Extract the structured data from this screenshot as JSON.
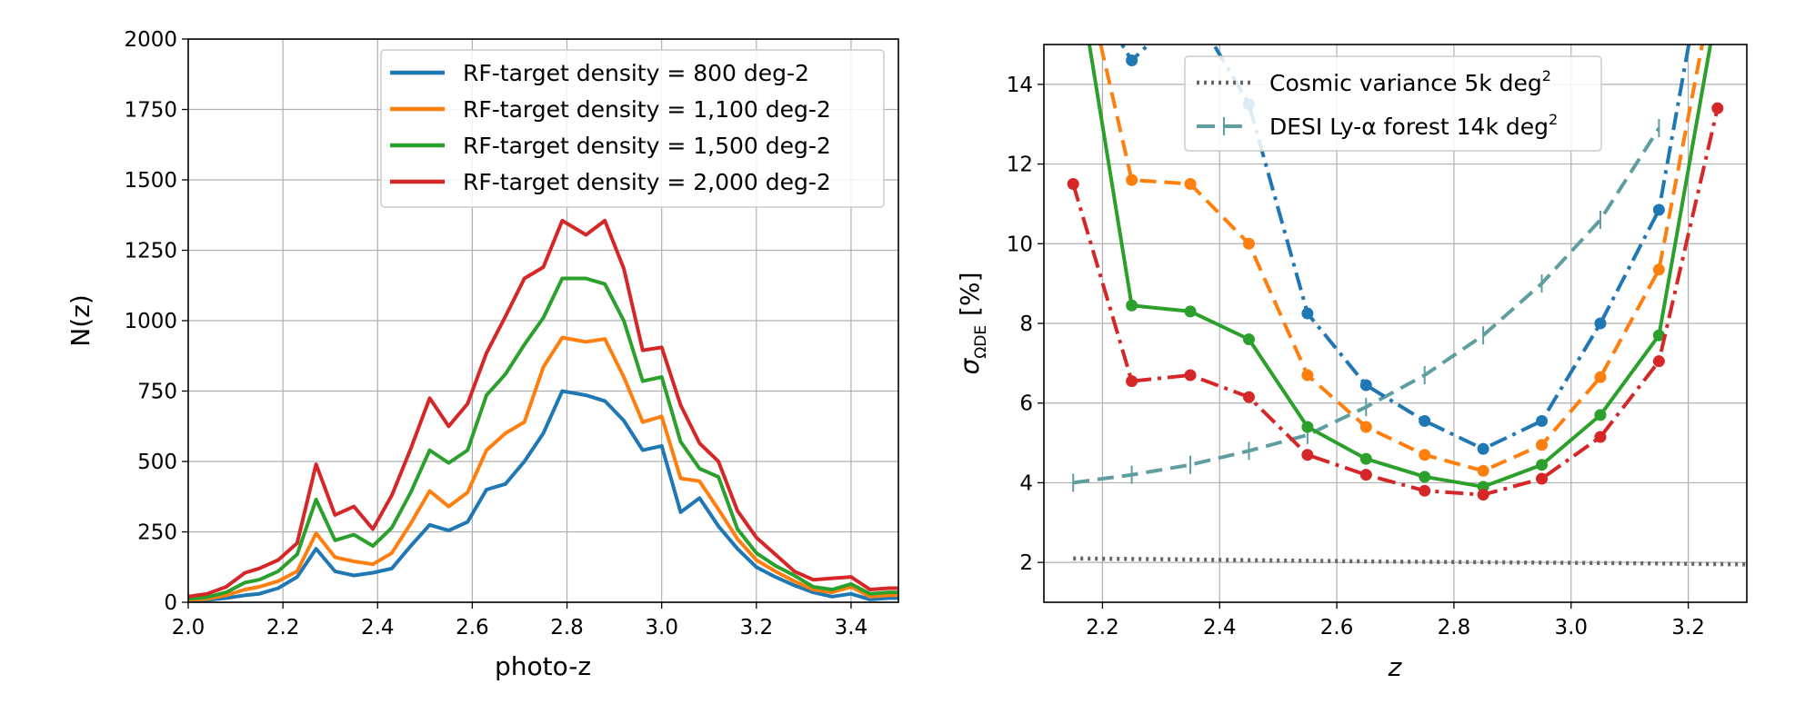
{
  "chart_data": [
    {
      "type": "line",
      "xlabel": "photo-z",
      "ylabel": "N(z)",
      "xlim": [
        2.0,
        3.5
      ],
      "ylim": [
        0,
        2000
      ],
      "xticks": [
        "2.0",
        "2.2",
        "2.4",
        "2.6",
        "2.8",
        "3.0",
        "3.2",
        "3.4"
      ],
      "yticks": [
        "0",
        "250",
        "500",
        "750",
        "1000",
        "1250",
        "1500",
        "1750",
        "2000"
      ],
      "grid": true,
      "legend_position": "top-right",
      "x": [
        2.0,
        2.04,
        2.08,
        2.12,
        2.15,
        2.19,
        2.23,
        2.27,
        2.31,
        2.35,
        2.39,
        2.43,
        2.47,
        2.51,
        2.55,
        2.59,
        2.63,
        2.67,
        2.71,
        2.75,
        2.79,
        2.84,
        2.88,
        2.92,
        2.96,
        3.0,
        3.04,
        3.08,
        3.12,
        3.16,
        3.2,
        3.24,
        3.28,
        3.32,
        3.36,
        3.4,
        3.44,
        3.48,
        3.5
      ],
      "series": [
        {
          "name": "RF-target density = 800 deg-2",
          "color": "#1f77b4",
          "values": [
            5,
            8,
            15,
            25,
            30,
            50,
            90,
            190,
            110,
            95,
            105,
            120,
            200,
            275,
            255,
            285,
            400,
            420,
            500,
            600,
            750,
            735,
            715,
            645,
            540,
            555,
            320,
            370,
            270,
            190,
            125,
            90,
            60,
            35,
            20,
            30,
            10,
            15,
            15
          ]
        },
        {
          "name": "RF-target density = 1,100 deg-2",
          "color": "#ff7f0e",
          "values": [
            8,
            12,
            25,
            45,
            55,
            75,
            110,
            245,
            160,
            145,
            135,
            175,
            280,
            395,
            340,
            390,
            540,
            600,
            640,
            835,
            940,
            925,
            935,
            800,
            640,
            660,
            440,
            430,
            330,
            225,
            150,
            110,
            75,
            45,
            35,
            55,
            20,
            25,
            25
          ]
        },
        {
          "name": "RF-target density = 1,500 deg-2",
          "color": "#2ca02c",
          "values": [
            12,
            18,
            35,
            70,
            80,
            110,
            170,
            365,
            220,
            240,
            200,
            265,
            390,
            540,
            495,
            540,
            735,
            810,
            915,
            1010,
            1150,
            1150,
            1130,
            1000,
            785,
            800,
            570,
            475,
            445,
            260,
            175,
            130,
            95,
            55,
            45,
            65,
            30,
            35,
            35
          ]
        },
        {
          "name": "RF-target density = 2,000 deg-2",
          "color": "#d62728",
          "values": [
            20,
            30,
            55,
            105,
            120,
            150,
            210,
            490,
            310,
            340,
            260,
            380,
            545,
            725,
            625,
            705,
            885,
            1015,
            1150,
            1190,
            1355,
            1305,
            1355,
            1185,
            895,
            905,
            700,
            565,
            500,
            325,
            230,
            170,
            110,
            80,
            85,
            90,
            45,
            50,
            50
          ]
        }
      ]
    },
    {
      "type": "line",
      "xlabel": "z",
      "ylabel": "σΩDE [%]",
      "ylabel_main": "σ",
      "ylabel_sub": "ΩDE",
      "ylabel_unit": "[%]",
      "xlim": [
        2.1,
        3.3
      ],
      "ylim": [
        1,
        15
      ],
      "xticks": [
        "2.2",
        "2.4",
        "2.6",
        "2.8",
        "3.0",
        "3.2"
      ],
      "yticks": [
        "2",
        "4",
        "6",
        "8",
        "10",
        "12",
        "14"
      ],
      "grid": true,
      "legend_position": "top-center",
      "legend": [
        {
          "label": "Cosmic variance 5k deg",
          "sup": "2",
          "color": "#666666",
          "style": "dotted"
        },
        {
          "label": "DESI Ly-α forest 14k deg",
          "sup": "2",
          "color": "#5f9ea0",
          "style": "dashed-tick"
        }
      ],
      "series": [
        {
          "color": "#666666",
          "style": "dotted",
          "markers": false,
          "x": [
            2.15,
            2.3,
            2.5,
            2.7,
            2.9,
            3.1,
            3.3
          ],
          "values": [
            2.1,
            2.08,
            2.05,
            2.02,
            2.0,
            1.98,
            1.95
          ]
        },
        {
          "color": "#5f9ea0",
          "style": "dashed-tick",
          "markers": false,
          "x": [
            2.15,
            2.25,
            2.35,
            2.45,
            2.55,
            2.65,
            2.75,
            2.85,
            2.95,
            3.05,
            3.15
          ],
          "values": [
            4.0,
            4.2,
            4.45,
            4.8,
            5.2,
            5.9,
            6.7,
            7.7,
            9.0,
            10.6,
            12.9
          ]
        },
        {
          "color": "#1f77b4",
          "style": "dashdot",
          "markers": true,
          "x": [
            2.15,
            2.25,
            2.35,
            2.45,
            2.55,
            2.65,
            2.75,
            2.85,
            2.95,
            3.05,
            3.15,
            3.25
          ],
          "values": [
            17.0,
            14.6,
            16.0,
            13.5,
            8.25,
            6.45,
            5.55,
            4.85,
            5.55,
            8.0,
            10.85,
            19.0
          ]
        },
        {
          "color": "#ff7f0e",
          "style": "dashed",
          "markers": true,
          "x": [
            2.15,
            2.25,
            2.35,
            2.45,
            2.55,
            2.65,
            2.75,
            2.85,
            2.95,
            3.05,
            3.15,
            3.25
          ],
          "values": [
            18.0,
            11.6,
            11.5,
            10.0,
            6.7,
            5.4,
            4.7,
            4.3,
            4.95,
            6.65,
            9.35,
            17.0
          ]
        },
        {
          "color": "#2ca02c",
          "style": "solid",
          "markers": true,
          "x": [
            2.15,
            2.25,
            2.35,
            2.45,
            2.55,
            2.65,
            2.75,
            2.85,
            2.95,
            3.05,
            3.15,
            3.25
          ],
          "values": [
            17.5,
            8.45,
            8.3,
            7.6,
            5.4,
            4.6,
            4.15,
            3.9,
            4.45,
            5.7,
            7.7,
            16.0
          ]
        },
        {
          "color": "#d62728",
          "style": "dashdot",
          "markers": true,
          "x": [
            2.15,
            2.25,
            2.35,
            2.45,
            2.55,
            2.65,
            2.75,
            2.85,
            2.95,
            3.05,
            3.15,
            3.25
          ],
          "values": [
            11.5,
            6.55,
            6.7,
            6.15,
            4.7,
            4.2,
            3.8,
            3.7,
            4.1,
            5.15,
            7.05,
            13.4
          ]
        }
      ]
    }
  ]
}
